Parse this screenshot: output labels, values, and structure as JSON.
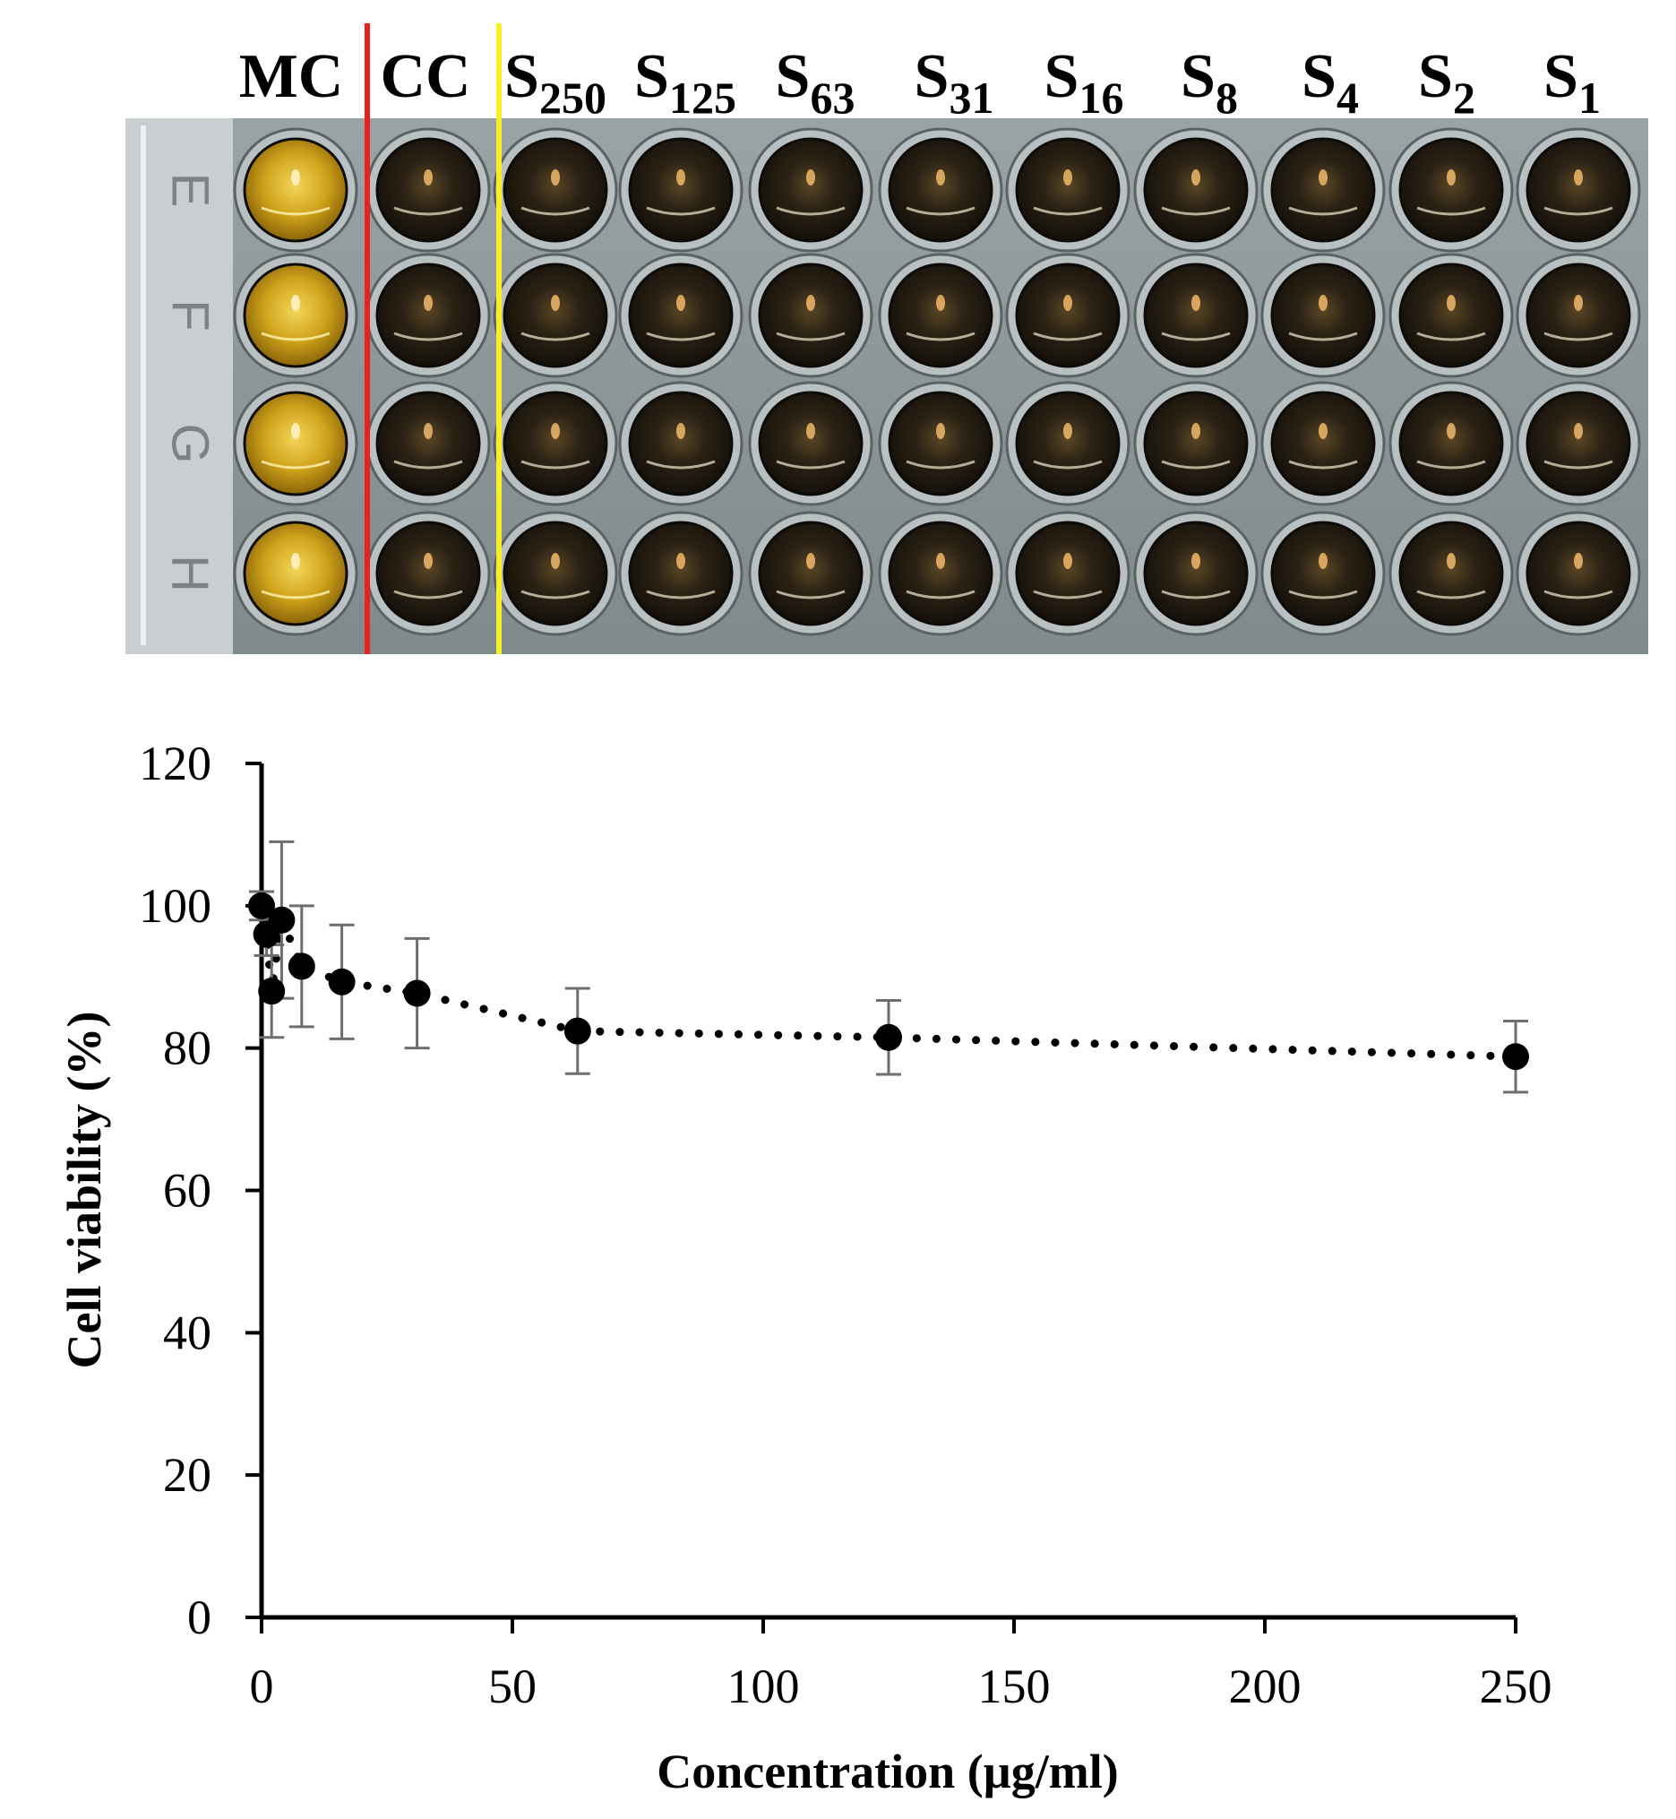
{
  "plate_photo": {
    "rows": [
      "E",
      "F",
      "G",
      "H"
    ],
    "columns": [
      {
        "main": "MC",
        "sub": ""
      },
      {
        "main": "CC",
        "sub": ""
      },
      {
        "main": "S",
        "sub": "250"
      },
      {
        "main": "S",
        "sub": "125"
      },
      {
        "main": "S",
        "sub": "63"
      },
      {
        "main": "S",
        "sub": "31"
      },
      {
        "main": "S",
        "sub": "16"
      },
      {
        "main": "S",
        "sub": "8"
      },
      {
        "main": "S",
        "sub": "4"
      },
      {
        "main": "S",
        "sub": "2"
      },
      {
        "main": "S",
        "sub": "1"
      }
    ],
    "well_colors": {
      "medium_control": "#c99a12",
      "treated": "#2a2214"
    },
    "divider_colors": {
      "after_MC": "#e8231f",
      "after_CC": "#f5ef24"
    }
  },
  "chart_data": {
    "type": "scatter",
    "xlabel": "Concentration (µg/ml)",
    "ylabel": "Cell viability (%)",
    "xlim": [
      0,
      250
    ],
    "ylim": [
      0,
      120
    ],
    "x_ticks": [
      0,
      50,
      100,
      150,
      200,
      250
    ],
    "y_ticks": [
      0,
      20,
      40,
      60,
      80,
      100,
      120
    ],
    "grid": false,
    "legend": "none",
    "series": [
      {
        "x": [
          0,
          1,
          2,
          4,
          8,
          16,
          31,
          63,
          125,
          250
        ],
        "y": [
          100,
          96,
          88,
          98,
          91.5,
          89.3,
          87.7,
          82.4,
          81.5,
          78.8
        ],
        "error": [
          2,
          3,
          6.5,
          11,
          8.5,
          8,
          7.7,
          6,
          5.2,
          5
        ],
        "trend": "dotted"
      }
    ]
  }
}
